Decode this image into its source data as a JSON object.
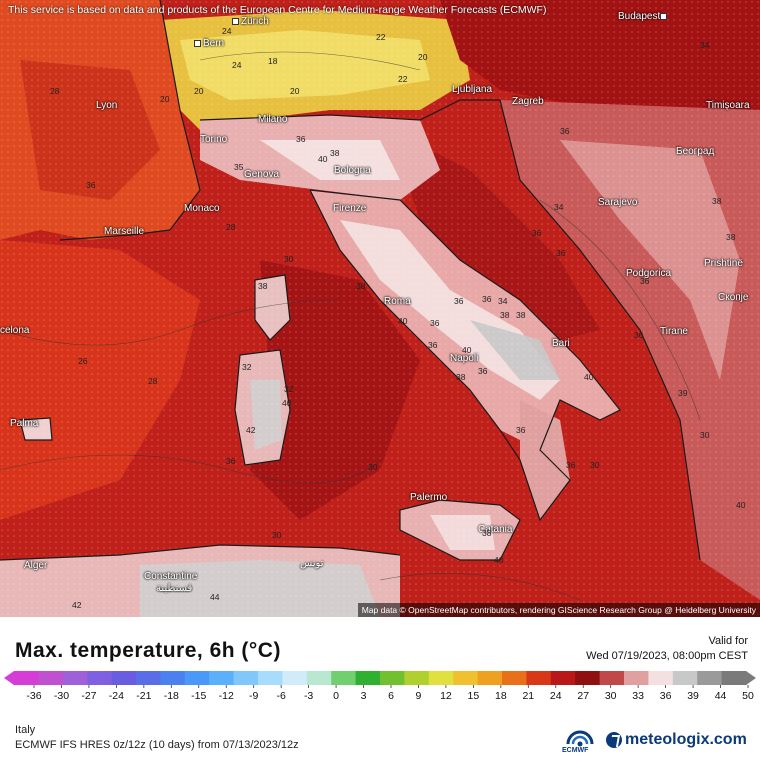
{
  "map": {
    "attribution_top": "This service is based on data and products of the European Centre for Medium-range Weather Forecasts (ECMWF)",
    "attribution_bottom": "Map data © OpenStreetMap contributors, rendering GIScience Research Group @ Heidelberg University",
    "cities": [
      {
        "name": "Zürich"
      },
      {
        "name": "Bern"
      },
      {
        "name": "Budapest"
      },
      {
        "name": "Lyon"
      },
      {
        "name": "Ljubljana"
      },
      {
        "name": "Zagreb"
      },
      {
        "name": "Timișoara"
      },
      {
        "name": "Milano"
      },
      {
        "name": "Torino"
      },
      {
        "name": "Београд"
      },
      {
        "name": "Genova"
      },
      {
        "name": "Bologna"
      },
      {
        "name": "Monaco"
      },
      {
        "name": "Firenze"
      },
      {
        "name": "Sarajevo"
      },
      {
        "name": "Marseille"
      },
      {
        "name": "Podgorica"
      },
      {
        "name": "Prishtinë"
      },
      {
        "name": "Roma"
      },
      {
        "name": "Скопје"
      },
      {
        "name": "Tirane"
      },
      {
        "name": "Bari"
      },
      {
        "name": "Napoli"
      },
      {
        "name": "Palma"
      },
      {
        "name": "Palermo"
      },
      {
        "name": "Catania"
      },
      {
        "name": "Alger"
      },
      {
        "name": "Constantine"
      },
      {
        "name": "قسنطينة"
      },
      {
        "name": "تونس"
      },
      {
        "name": "celona"
      }
    ],
    "isolines": [
      "24",
      "24",
      "20",
      "20",
      "22",
      "22",
      "18",
      "20",
      "20",
      "28",
      "34",
      "36",
      "36",
      "40",
      "38",
      "35",
      "36",
      "38",
      "38",
      "36",
      "36",
      "36",
      "36",
      "36",
      "40",
      "36",
      "40",
      "36",
      "36",
      "36",
      "38",
      "38",
      "40",
      "42",
      "40",
      "40",
      "34",
      "38",
      "38",
      "38",
      "36",
      "36",
      "38",
      "26",
      "28",
      "28",
      "32",
      "32",
      "30",
      "30",
      "30",
      "30",
      "30",
      "40",
      "44",
      "42",
      "36",
      "39",
      "34"
    ]
  },
  "footer": {
    "title": "Max. temperature, 6h (°C)",
    "valid_label": "Valid for",
    "valid_time": "Wed 07/19/2023, 08:00pm CEST",
    "region": "Italy",
    "model": "ECMWF IFS HRES 0z/12z (10 days) from  07/13/2023/12z",
    "ecmwf_label": "ECMWF",
    "brand": "meteologix.com"
  },
  "scale": {
    "ticks": [
      "-36",
      "-30",
      "-27",
      "-24",
      "-21",
      "-18",
      "-15",
      "-12",
      "-9",
      "-6",
      "-3",
      "0",
      "3",
      "6",
      "9",
      "12",
      "15",
      "18",
      "21",
      "24",
      "27",
      "30",
      "33",
      "36",
      "39",
      "44",
      "50"
    ],
    "colors": [
      "#d63cd6",
      "#c050d0",
      "#a060d8",
      "#8060e0",
      "#6a5ce0",
      "#5a6ce8",
      "#4a80f0",
      "#4a98f8",
      "#5ab0fb",
      "#80c8fc",
      "#a8dcfc",
      "#d0ecf8",
      "#b8e8d0",
      "#70d070",
      "#30b030",
      "#70c030",
      "#b0d030",
      "#e0e040",
      "#f0c030",
      "#f0a020",
      "#e87018",
      "#d83818",
      "#b81818",
      "#901010",
      "#c04848",
      "#e0a0a0",
      "#f4e0e0",
      "#c8c8c8",
      "#9a9a9a",
      "#7a7a7a"
    ]
  }
}
